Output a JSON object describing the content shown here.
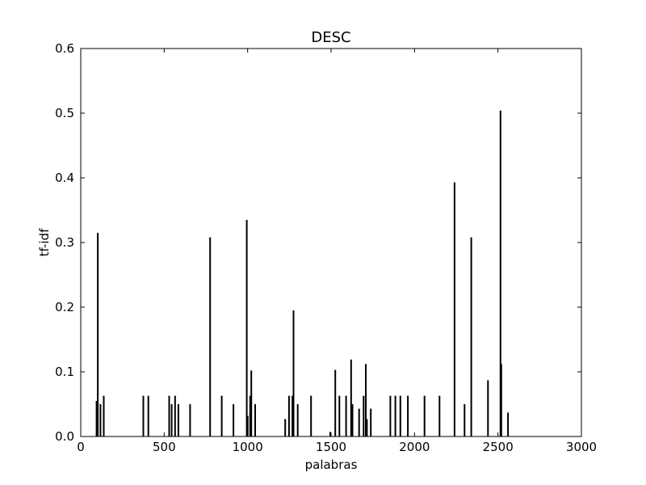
{
  "chart_data": {
    "type": "bar",
    "title": "DESC",
    "xlabel": "palabras",
    "ylabel": "tf-idf",
    "xlim": [
      0,
      3000
    ],
    "ylim": [
      0,
      0.6
    ],
    "xticks": [
      "0",
      "500",
      "1000",
      "1500",
      "2000",
      "2500",
      "3000"
    ],
    "yticks": [
      "0.0",
      "0.1",
      "0.2",
      "0.3",
      "0.4",
      "0.5",
      "0.6"
    ],
    "grid": false,
    "bar_color": "#000000",
    "x": [
      95,
      102,
      118,
      138,
      375,
      405,
      530,
      545,
      565,
      585,
      655,
      775,
      845,
      915,
      995,
      1000,
      1015,
      1022,
      1045,
      1225,
      1248,
      1268,
      1275,
      1300,
      1380,
      1495,
      1525,
      1550,
      1590,
      1620,
      1628,
      1668,
      1695,
      1708,
      1715,
      1738,
      1855,
      1885,
      1915,
      1960,
      2060,
      2150,
      2240,
      2300,
      2340,
      2440,
      2515,
      2520,
      2560
    ],
    "values": [
      0.055,
      0.315,
      0.05,
      0.063,
      0.063,
      0.063,
      0.063,
      0.05,
      0.063,
      0.05,
      0.05,
      0.308,
      0.063,
      0.05,
      0.335,
      0.032,
      0.063,
      0.102,
      0.05,
      0.027,
      0.063,
      0.063,
      0.195,
      0.05,
      0.063,
      0.007,
      0.103,
      0.063,
      0.063,
      0.119,
      0.05,
      0.043,
      0.063,
      0.112,
      0.027,
      0.043,
      0.063,
      0.063,
      0.063,
      0.063,
      0.063,
      0.063,
      0.393,
      0.05,
      0.308,
      0.087,
      0.504,
      0.112,
      0.037
    ]
  }
}
